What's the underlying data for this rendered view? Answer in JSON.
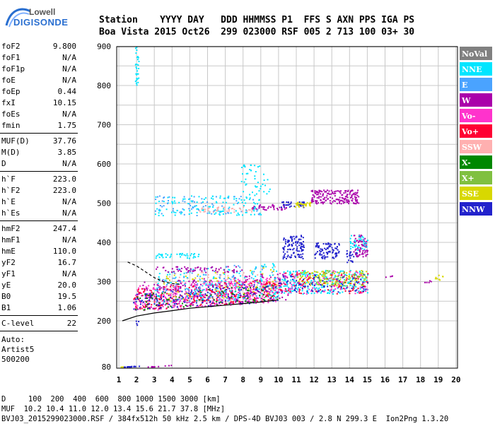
{
  "logo": {
    "line1": "Lowell",
    "line2": "DIGISONDE"
  },
  "header": {
    "labels": "Station    YYYY DAY   DDD HHMMSS P1  FFS S AXN PPS IGA PS",
    "values": "Boa Vista 2015 Oct26  299 023000 RSF 005 2 713 100 03+ 30"
  },
  "params": [
    {
      "name": "foF2",
      "value": "9.800"
    },
    {
      "name": "foF1",
      "value": "N/A"
    },
    {
      "name": "foF1p",
      "value": "N/A"
    },
    {
      "name": "foE",
      "value": "N/A"
    },
    {
      "name": "foEp",
      "value": "0.44"
    },
    {
      "name": "fxI",
      "value": "10.15"
    },
    {
      "name": "foEs",
      "value": "N/A"
    },
    {
      "name": "fmin",
      "value": "1.75"
    },
    {
      "name": "MUF(D)",
      "value": "37.76"
    },
    {
      "name": "M(D)",
      "value": "3.85"
    },
    {
      "name": "D",
      "value": "N/A"
    },
    {
      "name": "h`F",
      "value": "223.0"
    },
    {
      "name": "h`F2",
      "value": "223.0"
    },
    {
      "name": "h`E",
      "value": "N/A"
    },
    {
      "name": "h`Es",
      "value": "N/A"
    },
    {
      "name": "hmF2",
      "value": "247.4"
    },
    {
      "name": "hmF1",
      "value": "N/A"
    },
    {
      "name": "hmE",
      "value": "110.0"
    },
    {
      "name": "yF2",
      "value": "16.7"
    },
    {
      "name": "yF1",
      "value": "N/A"
    },
    {
      "name": "yE",
      "value": "20.0"
    },
    {
      "name": "B0",
      "value": "19.5"
    },
    {
      "name": "B1",
      "value": "1.06"
    },
    {
      "name": "C-level",
      "value": "22"
    }
  ],
  "auto": {
    "line1": "Auto:",
    "line2": "Artist5",
    "line3": "500200"
  },
  "footer": {
    "d_row": "D     100  200  400  600  800 1000 1500 3000 [km]",
    "muf_row": "MUF  10.2 10.4 11.0 12.0 13.4 15.6 21.7 37.8 [MHz]",
    "file_row": "BVJ03_2015299023000.RSF / 384fx512h 50 kHz 2.5 km / DPS-4D BVJ03 003 / 2.8 N 299.3 E  Ion2Png 1.3.20"
  },
  "chart_data": {
    "type": "scatter",
    "x_ticks": [
      "1",
      "2",
      "3",
      "4",
      "5",
      "6",
      "7",
      "8",
      "9",
      "10",
      "11",
      "12",
      "13",
      "14",
      "15",
      "16",
      "17",
      "18",
      "19",
      "20"
    ],
    "y_ticks": [
      "80",
      "200",
      "300",
      "400",
      "500",
      "600",
      "700",
      "800",
      "900"
    ],
    "xlim": [
      1,
      20
    ],
    "y_axis": "piecewise: 80 at bottom, 200 to 900 linear",
    "grid": true,
    "legend_position": "right",
    "legend": [
      {
        "name": "NoVal",
        "color": "#808080",
        "text_color": "#ffffff"
      },
      {
        "name": "NNE",
        "color": "#00e5ff",
        "text_color": "#ffffff"
      },
      {
        "name": "E",
        "color": "#4aa3ff",
        "text_color": "#ffffff"
      },
      {
        "name": "W",
        "color": "#aa00aa",
        "text_color": "#ffffff"
      },
      {
        "name": "Vo-",
        "color": "#ff33cc",
        "text_color": "#ffffff"
      },
      {
        "name": "Vo+",
        "color": "#ff0033",
        "text_color": "#ffffff"
      },
      {
        "name": "SSW",
        "color": "#ffb0b0",
        "text_color": "#ffffff"
      },
      {
        "name": "X-",
        "color": "#008800",
        "text_color": "#ffffff"
      },
      {
        "name": "X+",
        "color": "#80c040",
        "text_color": "#ffffff"
      },
      {
        "name": "SSE",
        "color": "#d8d800",
        "text_color": "#ffffff"
      },
      {
        "name": "NNW",
        "color": "#2222cc",
        "text_color": "#ffffff"
      }
    ],
    "clusters": [
      {
        "series": "Vo-",
        "fmin": 1.8,
        "fmax": 10.0,
        "hmin": 225,
        "hmax": 290,
        "n": 420
      },
      {
        "series": "Vo+",
        "fmin": 1.8,
        "fmax": 10.0,
        "hmin": 228,
        "hmax": 285,
        "n": 260
      },
      {
        "series": "W",
        "fmin": 2.0,
        "fmax": 10.5,
        "hmin": 230,
        "hmax": 300,
        "n": 220
      },
      {
        "series": "NNW",
        "fmin": 1.8,
        "fmax": 10.0,
        "hmin": 225,
        "hmax": 275,
        "n": 160
      },
      {
        "series": "X-",
        "fmin": 1.9,
        "fmax": 10.0,
        "hmin": 228,
        "hmax": 270,
        "n": 90
      },
      {
        "series": "SSW",
        "fmin": 3.0,
        "fmax": 10.0,
        "hmin": 240,
        "hmax": 320,
        "n": 90
      },
      {
        "series": "NNE",
        "fmin": 3.0,
        "fmax": 10.0,
        "hmin": 240,
        "hmax": 330,
        "n": 140
      },
      {
        "series": "E",
        "fmin": 3.0,
        "fmax": 10.0,
        "hmin": 240,
        "hmax": 330,
        "n": 100
      },
      {
        "series": "SSE",
        "fmin": 3.5,
        "fmax": 10.0,
        "hmin": 250,
        "hmax": 320,
        "n": 60
      },
      {
        "series": "NNE",
        "fmin": 10.0,
        "fmax": 15.0,
        "hmin": 270,
        "hmax": 330,
        "n": 240
      },
      {
        "series": "SSE",
        "fmin": 11.0,
        "fmax": 15.0,
        "hmin": 290,
        "hmax": 330,
        "n": 120
      },
      {
        "series": "Vo-",
        "fmin": 10.0,
        "fmax": 15.0,
        "hmin": 270,
        "hmax": 330,
        "n": 120
      },
      {
        "series": "Vo+",
        "fmin": 10.0,
        "fmax": 15.0,
        "hmin": 270,
        "hmax": 325,
        "n": 80
      },
      {
        "series": "NNW",
        "fmin": 10.0,
        "fmax": 15.0,
        "hmin": 275,
        "hmax": 320,
        "n": 80
      },
      {
        "series": "X+",
        "fmin": 12.0,
        "fmax": 15.0,
        "hmin": 290,
        "hmax": 330,
        "n": 60
      },
      {
        "series": "NNW",
        "fmin": 10.2,
        "fmax": 11.4,
        "hmin": 360,
        "hmax": 420,
        "n": 110
      },
      {
        "series": "NNW",
        "fmin": 12.0,
        "fmax": 13.4,
        "hmin": 360,
        "hmax": 400,
        "n": 90
      },
      {
        "series": "NNW",
        "fmin": 13.8,
        "fmax": 14.4,
        "hmin": 350,
        "hmax": 380,
        "n": 25
      },
      {
        "series": "W",
        "fmin": 14.2,
        "fmax": 15.0,
        "hmin": 365,
        "hmax": 420,
        "n": 70
      },
      {
        "series": "NNE",
        "fmin": 14.0,
        "fmax": 15.0,
        "hmin": 380,
        "hmax": 420,
        "n": 35
      },
      {
        "series": "NNE",
        "fmin": 3.0,
        "fmax": 9.0,
        "hmin": 470,
        "hmax": 520,
        "n": 130
      },
      {
        "series": "E",
        "fmin": 3.0,
        "fmax": 9.0,
        "hmin": 470,
        "hmax": 520,
        "n": 70
      },
      {
        "series": "SSW",
        "fmin": 5.5,
        "fmax": 8.5,
        "hmin": 478,
        "hmax": 492,
        "n": 40
      },
      {
        "series": "W",
        "fmin": 8.5,
        "fmax": 10.5,
        "hmin": 484,
        "hmax": 498,
        "n": 40
      },
      {
        "series": "NNW",
        "fmin": 10.0,
        "fmax": 11.5,
        "hmin": 490,
        "hmax": 505,
        "n": 35
      },
      {
        "series": "SSE",
        "fmin": 10.8,
        "fmax": 11.8,
        "hmin": 492,
        "hmax": 505,
        "n": 30
      },
      {
        "series": "W",
        "fmin": 11.8,
        "fmax": 14.5,
        "hmin": 500,
        "hmax": 535,
        "n": 180
      },
      {
        "series": "NNE",
        "fmin": 7.8,
        "fmax": 9.5,
        "hmin": 520,
        "hmax": 600,
        "n": 45
      },
      {
        "series": "W",
        "fmin": 3.0,
        "fmax": 8.0,
        "hmin": 325,
        "hmax": 340,
        "n": 60
      },
      {
        "series": "NNE",
        "fmin": 3.0,
        "fmax": 5.5,
        "hmin": 360,
        "hmax": 375,
        "n": 40
      },
      {
        "series": "NNE",
        "fmin": 1.9,
        "fmax": 2.1,
        "hmin": 800,
        "hmax": 900,
        "n": 30
      },
      {
        "series": "NNW",
        "fmin": 1.2,
        "fmax": 2.2,
        "hmin": 80,
        "hmax": 81,
        "n": 25
      },
      {
        "series": "W",
        "fmin": 2.5,
        "fmax": 4.0,
        "hmin": 80,
        "hmax": 81,
        "n": 12
      },
      {
        "series": "SSE",
        "fmin": 1.0,
        "fmax": 1.3,
        "hmin": 80,
        "hmax": 81,
        "n": 4
      },
      {
        "series": "SSE",
        "fmin": 18.8,
        "fmax": 19.3,
        "hmin": 305,
        "hmax": 320,
        "n": 8
      },
      {
        "series": "W",
        "fmin": 16.0,
        "fmax": 16.4,
        "hmin": 310,
        "hmax": 318,
        "n": 4
      },
      {
        "series": "W",
        "fmin": 18.2,
        "fmax": 18.6,
        "hmin": 298,
        "hmax": 305,
        "n": 5
      },
      {
        "series": "NNW",
        "fmin": 1.9,
        "fmax": 2.1,
        "hmin": 190,
        "hmax": 215,
        "n": 4
      }
    ],
    "trace_solid": [
      [
        1.2,
        200
      ],
      [
        2.0,
        212
      ],
      [
        3.0,
        220
      ],
      [
        4.0,
        226
      ],
      [
        5.0,
        232
      ],
      [
        6.0,
        236
      ],
      [
        7.0,
        240
      ],
      [
        8.0,
        244
      ],
      [
        9.0,
        248
      ],
      [
        9.9,
        253
      ]
    ],
    "trace_dashed": [
      [
        1.5,
        350
      ],
      [
        2.0,
        340
      ],
      [
        2.5,
        325
      ],
      [
        3.0,
        310
      ],
      [
        3.5,
        300
      ],
      [
        4.0,
        295
      ],
      [
        4.5,
        293
      ]
    ]
  }
}
